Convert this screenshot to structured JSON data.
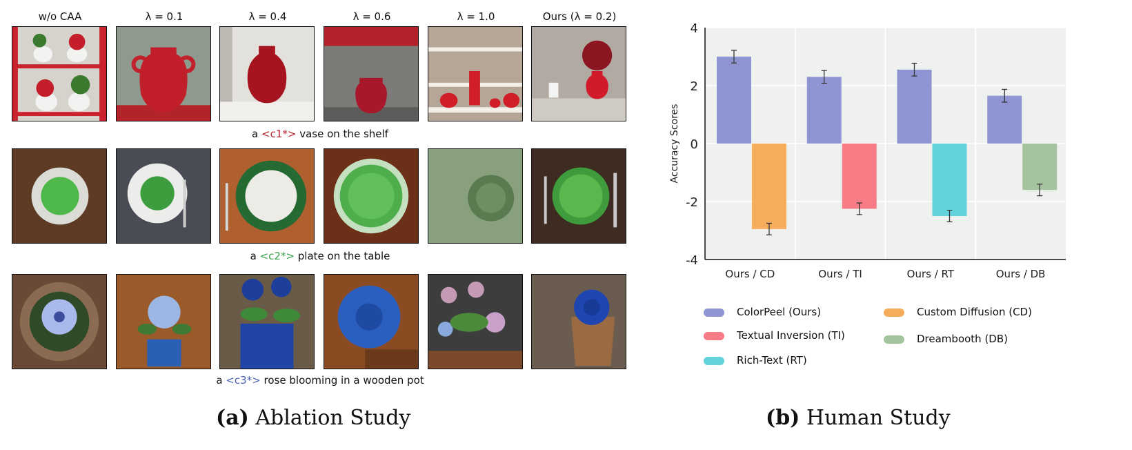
{
  "ablation": {
    "column_headers": [
      "w/o CAA",
      "λ = 0.1",
      "λ = 0.4",
      "λ = 0.6",
      "λ = 1.0",
      "Ours (λ = 0.2)"
    ],
    "rows": [
      {
        "caption_pre": "a ",
        "token": "<c1*>",
        "caption_post": " vase on the shelf"
      },
      {
        "caption_pre": "a ",
        "token": "<c2*>",
        "caption_post": " plate on the table"
      },
      {
        "caption_pre": "a ",
        "token": "<c3*>",
        "caption_post": " rose blooming in a wooden pot"
      }
    ],
    "subcaption_label": "(a)",
    "subcaption_text": "Ablation Study"
  },
  "human_study": {
    "subcaption_label": "(b)",
    "subcaption_text": "Human Study"
  },
  "chart_data": {
    "type": "bar",
    "ylabel": "Accuracy Scores",
    "xlabel": "",
    "ylim": [
      -4,
      4
    ],
    "yticks": [
      4,
      2,
      0,
      -2,
      -4
    ],
    "categories": [
      "Ours / CD",
      "Ours / TI",
      "Ours / RT",
      "Ours / DB"
    ],
    "grid": true,
    "legend_placement": "bottom",
    "series": [
      {
        "name": "ColorPeel (Ours)",
        "color": "#8e95d2",
        "values": [
          3.0,
          2.3,
          2.55,
          1.65
        ],
        "errors": [
          0.22,
          0.22,
          0.22,
          0.22
        ]
      },
      {
        "name": "Custom Diffusion (CD)",
        "color": "#f5ad5b",
        "values": [
          -2.95,
          null,
          null,
          null
        ],
        "errors": [
          0.2,
          null,
          null,
          null
        ]
      },
      {
        "name": "Textual Inversion (TI)",
        "color": "#f77c86",
        "values": [
          null,
          -2.25,
          null,
          null
        ],
        "errors": [
          null,
          0.2,
          null,
          null
        ]
      },
      {
        "name": "Rich-Text (RT)",
        "color": "#63d3db",
        "values": [
          null,
          null,
          -2.5,
          null
        ],
        "errors": [
          null,
          null,
          0.2,
          null
        ]
      },
      {
        "name": "Dreambooth (DB)",
        "color": "#a6c39f",
        "values": [
          null,
          null,
          null,
          -1.6
        ],
        "errors": [
          null,
          null,
          null,
          0.2
        ]
      }
    ]
  }
}
